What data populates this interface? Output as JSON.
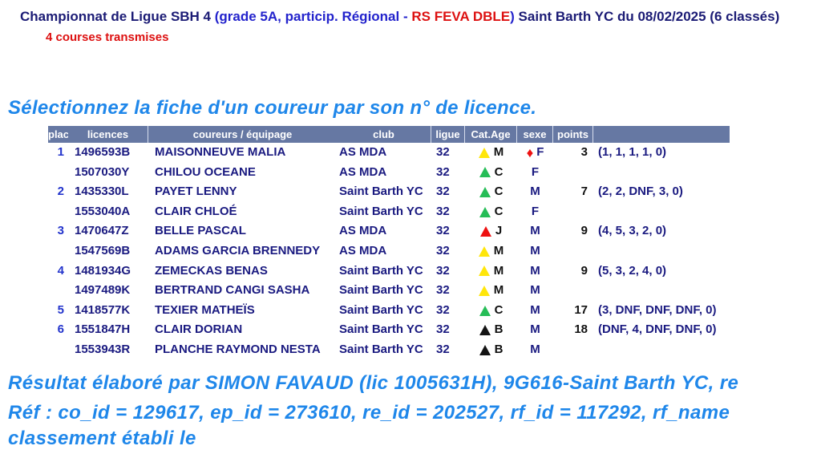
{
  "colors": {
    "navy": "#1b1b75",
    "blue": "#2323cc",
    "red": "#dd1111",
    "azure": "#1f87ea",
    "table_header_bg": "#6678a3",
    "row_text": "#1a1a80",
    "place_text": "#2334cc",
    "points_text": "#111111",
    "cat_letter": "#111111"
  },
  "marker_colors": {
    "yellow": "#ffe60a",
    "green": "#26bd57",
    "red": "#ee1111",
    "black": "#141414",
    "diamond": "#ee1111"
  },
  "header": {
    "title_parts": [
      {
        "text": "Championnat de Ligue SBH 4 ",
        "color": "#1b1b75"
      },
      {
        "text": "(grade 5A, particip. Régional - ",
        "color": "#2323cc"
      },
      {
        "text": "RS FEVA DBLE",
        "color": "#dd1111"
      },
      {
        "text": ") ",
        "color": "#2323cc"
      },
      {
        "text": "Saint Barth YC",
        "color": "#1b1b75"
      },
      {
        "text": " du 08/02/2025 (6 classés)",
        "color": "#1b1b75"
      }
    ],
    "courses_note": "4 courses transmises"
  },
  "selection_heading": "Sélectionnez la fiche d'un coureur par son n° de licence.",
  "table": {
    "columns": [
      "place",
      "licences",
      "coureurs / équipage",
      "club",
      "ligue",
      "Cat.Age",
      "sexe",
      "points",
      ""
    ],
    "header_separators": [
      1,
      3,
      4,
      5,
      6,
      7
    ],
    "rows": [
      {
        "place": "1",
        "licence": "1496593B",
        "name": "MAISONNEUVE MALIA",
        "club": "AS MDA",
        "ligue": "32",
        "cat": "M",
        "cat_color": "yellow",
        "sexe": "F",
        "sexe_marker": "diamond",
        "points": "3",
        "detail": "(1, 1, 1, 1, 0)"
      },
      {
        "place": "",
        "licence": "1507030Y",
        "name": "CHILOU OCEANE",
        "club": "AS MDA",
        "ligue": "32",
        "cat": "C",
        "cat_color": "green",
        "sexe": "F",
        "sexe_marker": "",
        "points": "",
        "detail": ""
      },
      {
        "place": "2",
        "licence": "1435330L",
        "name": "PAYET LENNY",
        "club": "Saint Barth YC",
        "ligue": "32",
        "cat": "C",
        "cat_color": "green",
        "sexe": "M",
        "sexe_marker": "",
        "points": "7",
        "detail": "(2, 2, DNF, 3, 0)"
      },
      {
        "place": "",
        "licence": "1553040A",
        "name": "CLAIR CHLOÉ",
        "club": "Saint Barth YC",
        "ligue": "32",
        "cat": "C",
        "cat_color": "green",
        "sexe": "F",
        "sexe_marker": "",
        "points": "",
        "detail": ""
      },
      {
        "place": "3",
        "licence": "1470647Z",
        "name": "BELLE PASCAL",
        "club": "AS MDA",
        "ligue": "32",
        "cat": "J",
        "cat_color": "red",
        "sexe": "M",
        "sexe_marker": "",
        "points": "9",
        "detail": "(4, 5, 3, 2, 0)"
      },
      {
        "place": "",
        "licence": "1547569B",
        "name": "ADAMS GARCIA BRENNEDY",
        "club": "AS MDA",
        "ligue": "32",
        "cat": "M",
        "cat_color": "yellow",
        "sexe": "M",
        "sexe_marker": "",
        "points": "",
        "detail": ""
      },
      {
        "place": "4",
        "licence": "1481934G",
        "name": "ZEMECKAS BENAS",
        "club": "Saint Barth YC",
        "ligue": "32",
        "cat": "M",
        "cat_color": "yellow",
        "sexe": "M",
        "sexe_marker": "",
        "points": "9",
        "detail": "(5, 3, 2, 4, 0)"
      },
      {
        "place": "",
        "licence": "1497489K",
        "name": "BERTRAND CANGI SASHA",
        "club": "Saint Barth YC",
        "ligue": "32",
        "cat": "M",
        "cat_color": "yellow",
        "sexe": "M",
        "sexe_marker": "",
        "points": "",
        "detail": ""
      },
      {
        "place": "5",
        "licence": "1418577K",
        "name": "TEXIER MATHEÏS",
        "club": "Saint Barth YC",
        "ligue": "32",
        "cat": "C",
        "cat_color": "green",
        "sexe": "M",
        "sexe_marker": "",
        "points": "17",
        "detail": "(3, DNF, DNF, DNF, 0)"
      },
      {
        "place": "6",
        "licence": "1551847H",
        "name": "CLAIR DORIAN",
        "club": "Saint Barth YC",
        "ligue": "32",
        "cat": "B",
        "cat_color": "black",
        "sexe": "M",
        "sexe_marker": "",
        "points": "18",
        "detail": "(DNF, 4, DNF, DNF, 0)"
      },
      {
        "place": "",
        "licence": "1553943R",
        "name": "PLANCHE RAYMOND NESTA",
        "club": "Saint Barth YC",
        "ligue": "32",
        "cat": "B",
        "cat_color": "black",
        "sexe": "M",
        "sexe_marker": "",
        "points": "",
        "detail": ""
      }
    ]
  },
  "footer": {
    "line1": "Résultat élaboré par SIMON FAVAUD (lic 1005631H), 9G616-Saint Barth YC, re",
    "line2": "Réf : co_id = 129617, ep_id = 273610, re_id = 202527, rf_id = 117292, rf_name",
    "line3_clipped": "classement établi le"
  }
}
